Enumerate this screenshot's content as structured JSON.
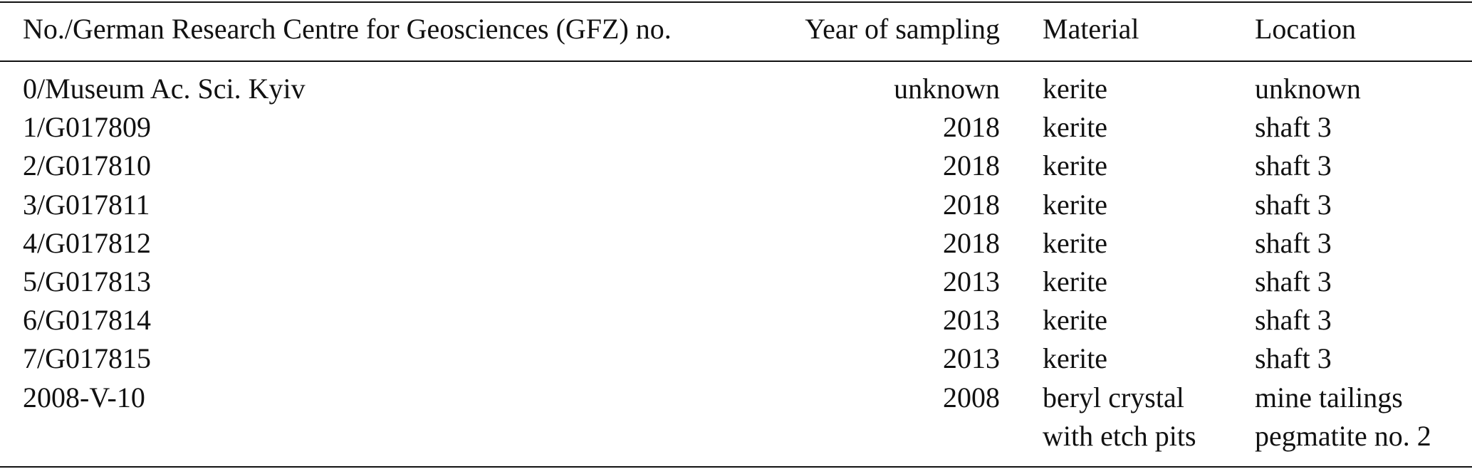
{
  "table": {
    "header": [
      "No./German Research Centre for Geosciences (GFZ) no.",
      "Year of sampling",
      "Material",
      "Location"
    ],
    "rows": [
      [
        "0/Museum Ac. Sci. Kyiv",
        "unknown",
        "kerite",
        "unknown"
      ],
      [
        "1/G017809",
        "2018",
        "kerite",
        "shaft 3"
      ],
      [
        "2/G017810",
        "2018",
        "kerite",
        "shaft 3"
      ],
      [
        "3/G017811",
        "2018",
        "kerite",
        "shaft 3"
      ],
      [
        "4/G017812",
        "2018",
        "kerite",
        "shaft 3"
      ],
      [
        "5/G017813",
        "2013",
        "kerite",
        "shaft 3"
      ],
      [
        "6/G017814",
        "2013",
        "kerite",
        "shaft 3"
      ],
      [
        "7/G017815",
        "2013",
        "kerite",
        "shaft 3"
      ],
      [
        "2008-V-10",
        "2008",
        [
          "beryl crystal",
          "with etch pits"
        ],
        [
          "mine tailings",
          "pegmatite no. 2"
        ]
      ]
    ]
  }
}
